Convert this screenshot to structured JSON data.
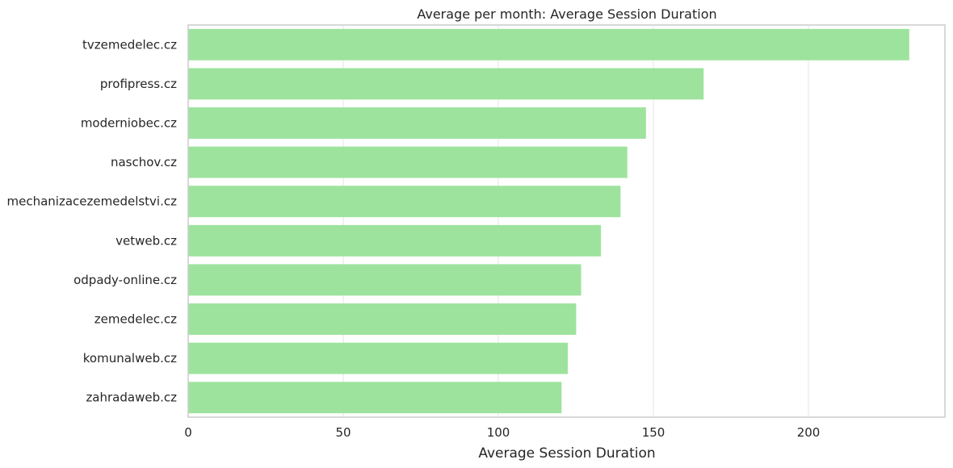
{
  "chart_data": {
    "type": "bar",
    "orientation": "horizontal",
    "title": "Average per month: Average Session Duration",
    "xlabel": "Average Session Duration",
    "ylabel": "",
    "categories": [
      "tvzemedelec.cz",
      "profipress.cz",
      "moderniobec.cz",
      "naschov.cz",
      "mechanizacezemedelstvi.cz",
      "vetweb.cz",
      "odpady-online.cz",
      "zemedelec.cz",
      "komunalweb.cz",
      "zahradaweb.cz"
    ],
    "values": [
      232.5,
      166.2,
      147.6,
      141.6,
      139.4,
      133.1,
      126.7,
      125.1,
      122.4,
      120.4
    ],
    "xlim": [
      0,
      244
    ],
    "xticks": [
      0,
      50,
      100,
      150,
      200
    ],
    "grid": "vertical",
    "bar_color": "#9de39d",
    "grid_color": "#e5e5e5",
    "spine_color": "#cccccc",
    "text_color": "#262626"
  }
}
